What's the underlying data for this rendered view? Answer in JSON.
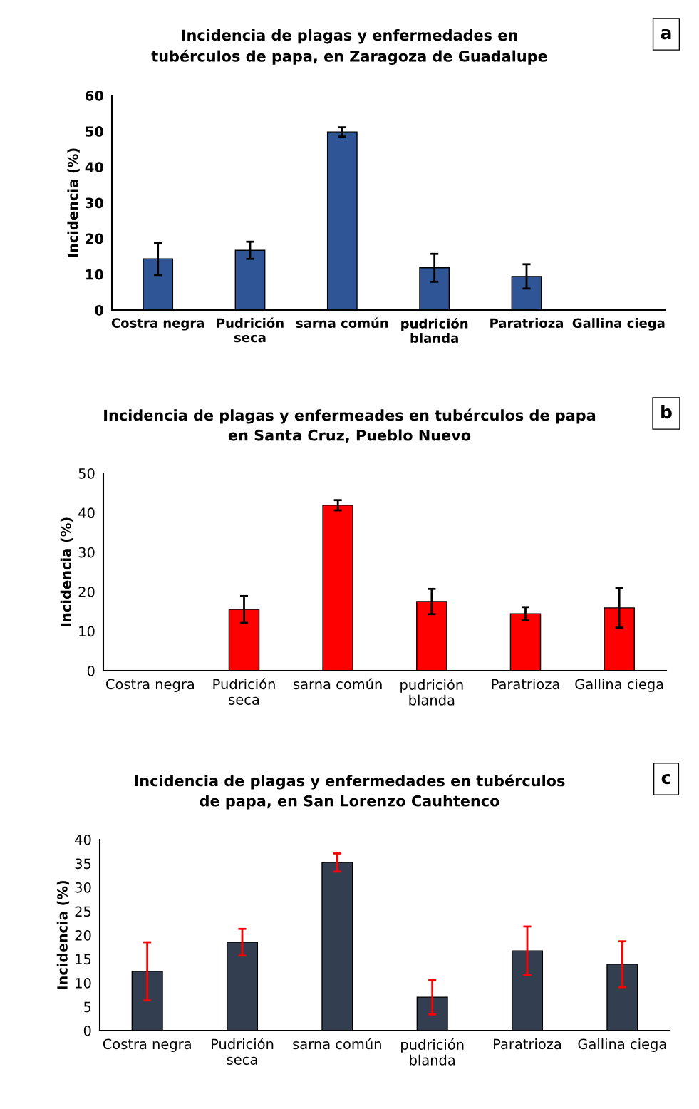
{
  "chart_data": [
    {
      "type": "bar",
      "title": "Incidencia de plagas y enfermedades en\ntubérculos de papa, en Zaragoza de Guadalupe",
      "ylabel": "Incidencia (%)",
      "annotations": [
        "a"
      ],
      "categories": [
        "Costra negra",
        "Pudrición\nseca",
        "sarna común",
        "pudrición\nblanda",
        "Paratrioza",
        "Gallina ciega"
      ],
      "series": [
        {
          "color": "#2f5597",
          "values": [
            14.3,
            16.7,
            49.8,
            11.8,
            9.4,
            0
          ],
          "errors": [
            4.5,
            2.4,
            1.3,
            3.9,
            3.4,
            null
          ]
        }
      ],
      "ylim": [
        0,
        60
      ],
      "yticks": [
        0,
        10,
        20,
        30,
        40,
        50,
        60
      ],
      "grid": false,
      "legend": false
    },
    {
      "type": "bar",
      "title": "Incidencia de plagas y enfermeades en tubérculos de papa\nen Santa Cruz, Pueblo Nuevo",
      "ylabel": "Incidencia (%)",
      "annotations": [
        "b"
      ],
      "categories": [
        "Costra negra",
        "Pudrición\nseca",
        "sarna común",
        "pudrición\nblanda",
        "Paratrioza",
        "Gallina ciega"
      ],
      "series": [
        {
          "color": "#ff0000",
          "values": [
            0,
            15.5,
            41.9,
            17.5,
            14.4,
            15.9
          ],
          "errors": [
            null,
            3.4,
            1.3,
            3.2,
            1.7,
            5.0
          ]
        }
      ],
      "ylim": [
        0,
        50
      ],
      "yticks": [
        0,
        10,
        20,
        30,
        40,
        50
      ],
      "grid": false,
      "legend": false
    },
    {
      "type": "bar",
      "title": "Incidencia de plagas y enfermedades en tubérculos\nde papa, en San Lorenzo Cauhtenco",
      "ylabel": "Incidencia (%)",
      "annotations": [
        "c"
      ],
      "categories": [
        "Costra negra",
        "Pudrición\nseca",
        "sarna común",
        "pudrición\nblanda",
        "Paratrioza",
        "Gallina ciega"
      ],
      "series": [
        {
          "color": "#333f50",
          "values": [
            12.4,
            18.5,
            35.2,
            7.0,
            16.7,
            13.9
          ],
          "errors": [
            6.1,
            2.8,
            1.9,
            3.6,
            5.1,
            4.8
          ]
        }
      ],
      "ylim": [
        0,
        40
      ],
      "yticks": [
        0,
        5,
        10,
        15,
        20,
        25,
        30,
        35,
        40
      ],
      "grid": false,
      "legend": false
    }
  ]
}
